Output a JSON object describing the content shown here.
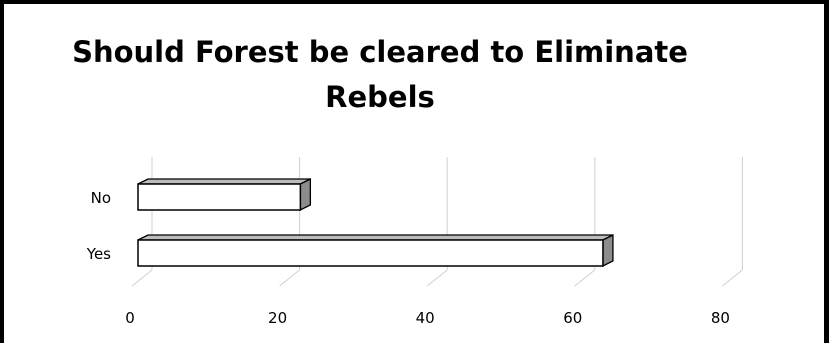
{
  "chart_data": {
    "type": "bar",
    "orientation": "horizontal",
    "title": "Should Forest be cleared to Eliminate Rebels",
    "categories": [
      "No",
      "Yes"
    ],
    "values": [
      22,
      63
    ],
    "xlim": [
      0,
      80
    ],
    "xticks": [
      "0",
      "20",
      "40",
      "60",
      "80"
    ],
    "style": "3d",
    "grid": true
  }
}
